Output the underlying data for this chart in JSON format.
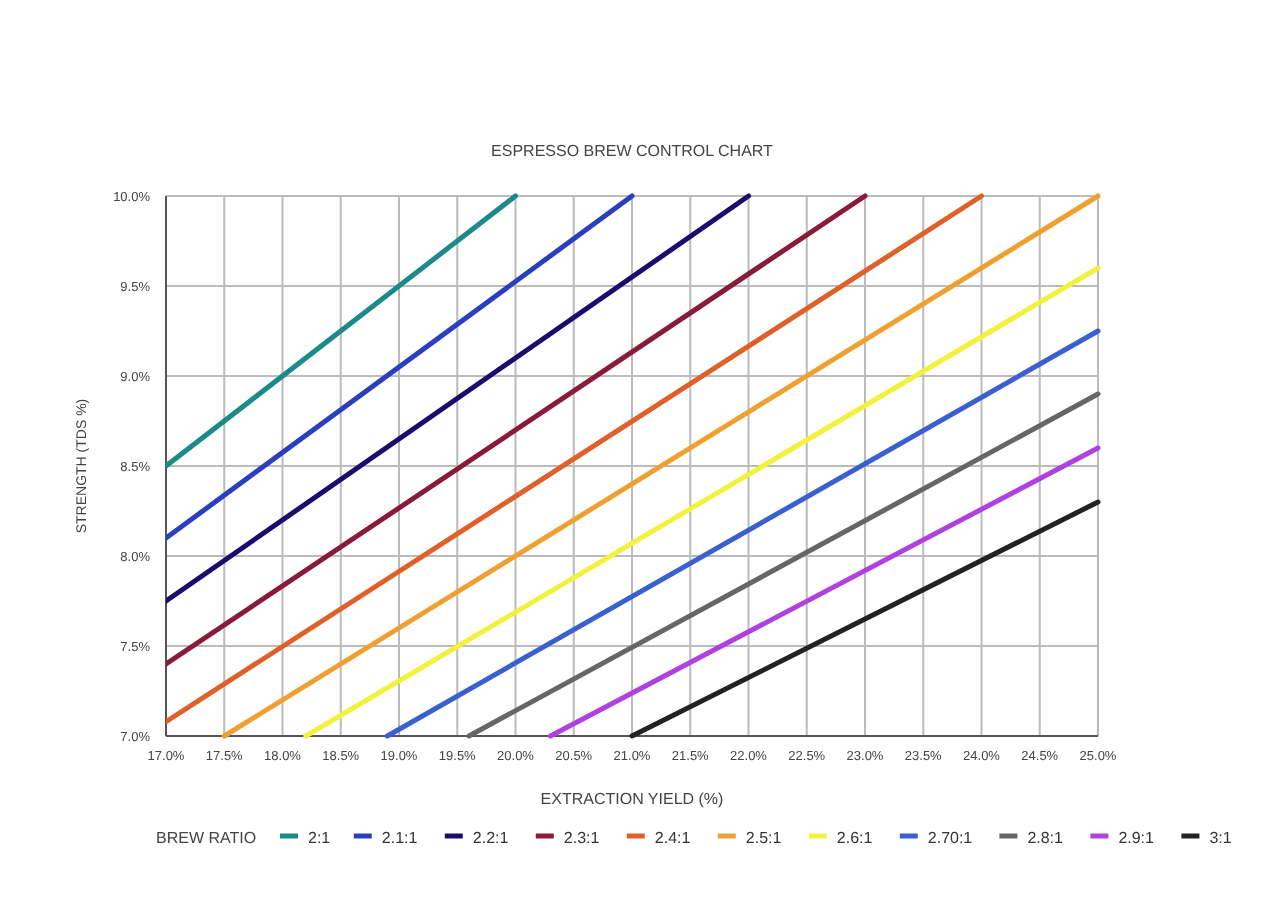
{
  "chart_data": {
    "type": "line",
    "title": "ESPRESSO BREW CONTROL CHART",
    "xlabel": "EXTRACTION YIELD (%)",
    "ylabel": "STRENGTH (TDS %)",
    "legend_title": "BREW RATIO",
    "legend": "bottom",
    "grid": true,
    "marker": "none",
    "line_style": "solid",
    "xlim": [
      17,
      25
    ],
    "ylim": [
      7,
      10
    ],
    "xticks": [
      {
        "value": 17,
        "label": "17.0%"
      },
      {
        "value": 17.5,
        "label": "17.5%"
      },
      {
        "value": 18,
        "label": "18.0%"
      },
      {
        "value": 18.5,
        "label": "18.5%"
      },
      {
        "value": 19,
        "label": "19.0%"
      },
      {
        "value": 19.5,
        "label": "19.5%"
      },
      {
        "value": 20,
        "label": "20.0%"
      },
      {
        "value": 20.5,
        "label": "20.5%"
      },
      {
        "value": 21,
        "label": "21.0%"
      },
      {
        "value": 21.5,
        "label": "21.5%"
      },
      {
        "value": 22,
        "label": "22.0%"
      },
      {
        "value": 22.5,
        "label": "22.5%"
      },
      {
        "value": 23,
        "label": "23.0%"
      },
      {
        "value": 23.5,
        "label": "23.5%"
      },
      {
        "value": 24,
        "label": "24.0%"
      },
      {
        "value": 24.5,
        "label": "24.5%"
      },
      {
        "value": 25,
        "label": "25.0%"
      }
    ],
    "yticks": [
      {
        "value": 7,
        "label": "7.0%"
      },
      {
        "value": 7.5,
        "label": "7.5%"
      },
      {
        "value": 8,
        "label": "8.0%"
      },
      {
        "value": 8.5,
        "label": "8.5%"
      },
      {
        "value": 9,
        "label": "9.0%"
      },
      {
        "value": 9.5,
        "label": "9.5%"
      },
      {
        "value": 10,
        "label": "10.0%"
      }
    ],
    "series": [
      {
        "name": "2:1",
        "color": "#1b8a8a",
        "x": [
          17,
          20
        ],
        "values": [
          8.5,
          10
        ]
      },
      {
        "name": "2.1:1",
        "color": "#2a3fbf",
        "x": [
          17,
          21
        ],
        "values": [
          8.1,
          10
        ]
      },
      {
        "name": "2.2:1",
        "color": "#1c0a6e",
        "x": [
          17,
          22
        ],
        "values": [
          7.75,
          10
        ]
      },
      {
        "name": "2.3:1",
        "color": "#8b1a3a",
        "x": [
          17,
          23
        ],
        "values": [
          7.4,
          10
        ]
      },
      {
        "name": "2.4:1",
        "color": "#e0602a",
        "x": [
          17,
          24
        ],
        "values": [
          7.08,
          10
        ]
      },
      {
        "name": "2.5:1",
        "color": "#f0a030",
        "x": [
          17.5,
          25
        ],
        "values": [
          7,
          10
        ]
      },
      {
        "name": "2.6:1",
        "color": "#f2f23e",
        "x": [
          18.2,
          25
        ],
        "values": [
          7,
          9.6
        ]
      },
      {
        "name": "2.70:1",
        "color": "#3a5fd0",
        "x": [
          18.9,
          25
        ],
        "values": [
          7,
          9.25
        ]
      },
      {
        "name": "2.8:1",
        "color": "#666666",
        "x": [
          19.6,
          25
        ],
        "values": [
          7,
          8.9
        ]
      },
      {
        "name": "2.9:1",
        "color": "#b040e0",
        "x": [
          20.3,
          25
        ],
        "values": [
          7,
          8.6
        ]
      },
      {
        "name": "3:1",
        "color": "#222222",
        "x": [
          21,
          25
        ],
        "values": [
          7,
          8.3
        ]
      }
    ]
  }
}
